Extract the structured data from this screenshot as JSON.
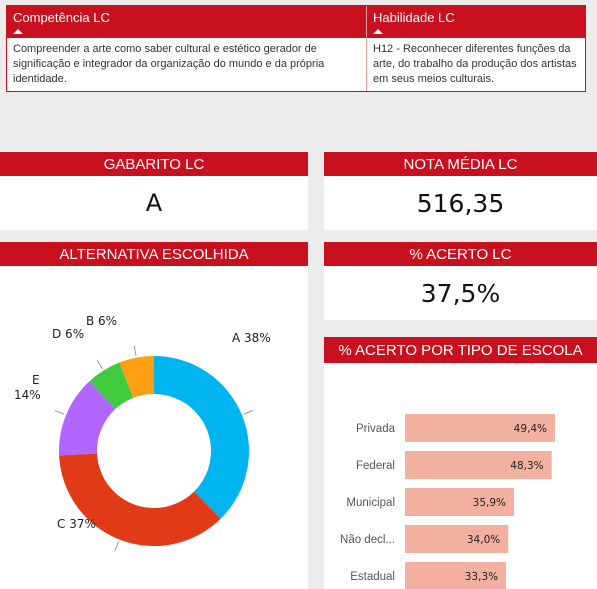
{
  "table": {
    "col1_header": "Competência LC",
    "col2_header": "Habilidade LC",
    "col1_text": "Compreender a arte como saber cultural e estético gerador de significação e integrador da organização do mundo e da própria identidade.",
    "col2_text": "H12 - Reconhecer diferentes funções da arte, do trabalho da produção dos artistas em seus meios culturais."
  },
  "cards": {
    "gabarito_title": "GABARITO LC",
    "gabarito_value": "A",
    "nota_title": "NOTA MÉDIA LC",
    "nota_value": "516,35",
    "acerto_title": "% ACERTO LC",
    "acerto_value": "37,5%",
    "alternativa_title": "ALTERNATIVA ESCOLHIDA",
    "escola_title": "% ACERTO POR TIPO DE ESCOLA"
  },
  "colors": {
    "header_red": "#c8101e",
    "bar_color": "#f2b0a0",
    "A": "#00b4f0",
    "C": "#e03a16",
    "E": "#b266ff",
    "D": "#3ecb3e",
    "B": "#ffa012"
  },
  "chart_data": [
    {
      "type": "pie",
      "title": "ALTERNATIVA ESCOLHIDA",
      "slices": [
        {
          "label": "A",
          "value": 38,
          "display": "A 38%"
        },
        {
          "label": "C",
          "value": 37,
          "display": "C 37%"
        },
        {
          "label": "E",
          "value": 14,
          "display": "E 14%"
        },
        {
          "label": "D",
          "value": 6,
          "display": "D 6%"
        },
        {
          "label": "B",
          "value": 6,
          "display": "B 6%"
        }
      ]
    },
    {
      "type": "bar",
      "orientation": "horizontal",
      "title": "% ACERTO POR TIPO DE ESCOLA",
      "categories": [
        "Privada",
        "Federal",
        "Municipal",
        "Não decl...",
        "Estadual"
      ],
      "values": [
        49.4,
        48.3,
        35.9,
        34.0,
        33.3
      ],
      "value_labels": [
        "49,4%",
        "48,3%",
        "35,9%",
        "34,0%",
        "33,3%"
      ]
    }
  ]
}
